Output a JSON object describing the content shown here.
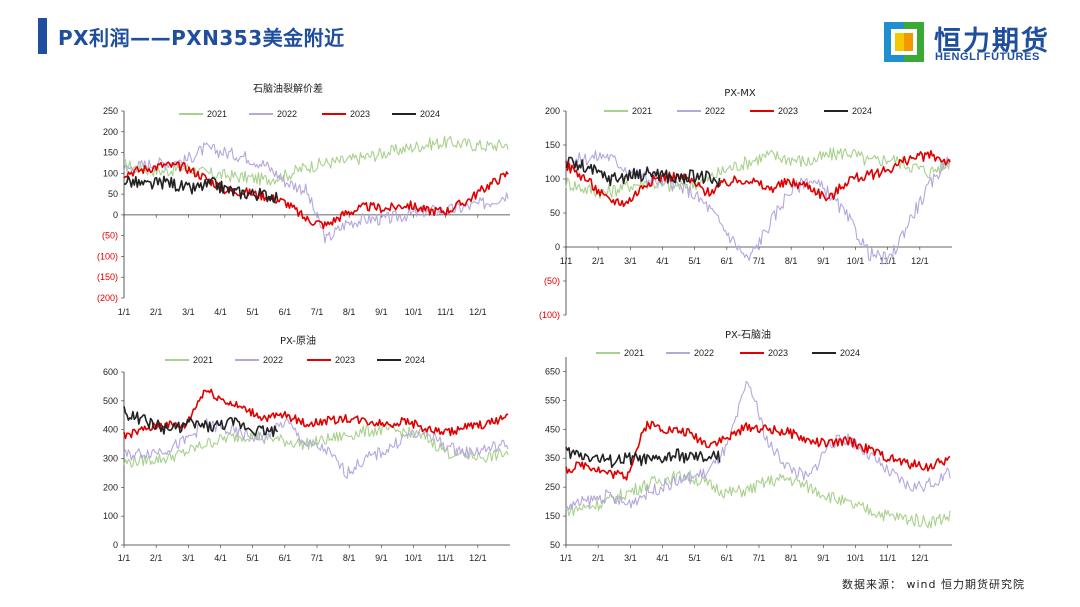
{
  "header": {
    "title": "PX利润——PXN353美金附近"
  },
  "logo": {
    "name_cn": "恒力期货",
    "name_en": "HENGLI FUTURES",
    "colors": {
      "green": "#3aa935",
      "orange": "#f39800",
      "yellow": "#f5c800",
      "blue": "#1f4e9c"
    }
  },
  "footer": {
    "source": "数据来源： wind 恒力期货研究院"
  },
  "colors": {
    "2021": "#a9d18e",
    "2022": "#b4a7de",
    "2023": "#e00000",
    "2024": "#222222"
  },
  "chart_data": [
    {
      "type": "line",
      "title": "石脑油裂解价差",
      "legend": [
        "2021",
        "2022",
        "2023",
        "2024"
      ],
      "ylim": [
        -200,
        250
      ],
      "yticks": [
        250,
        200,
        150,
        100,
        50,
        0,
        -50,
        -100,
        -150,
        -200
      ],
      "ytick_labels": [
        "250",
        "200",
        "150",
        "100",
        "50",
        "0",
        "(50)",
        "(100)",
        "(150)",
        "(200)"
      ],
      "zero_axis": true,
      "x_ticks": [
        "1/1",
        "2/1",
        "3/1",
        "4/1",
        "5/1",
        "6/1",
        "7/1",
        "8/1",
        "9/1",
        "10/1",
        "11/1",
        "12/1"
      ],
      "series": [
        {
          "name": "2021",
          "values": [
            120,
            110,
            105,
            115,
            100,
            95,
            90,
            85,
            95,
            115,
            125,
            130,
            140,
            150,
            160,
            170,
            175,
            170,
            165,
            170
          ]
        },
        {
          "name": "2022",
          "values": [
            110,
            120,
            125,
            130,
            160,
            150,
            140,
            120,
            80,
            60,
            -60,
            -20,
            -10,
            -10,
            0,
            10,
            10,
            20,
            30,
            50
          ]
        },
        {
          "name": "2023",
          "values": [
            100,
            110,
            120,
            115,
            90,
            60,
            55,
            45,
            30,
            -10,
            -25,
            5,
            20,
            15,
            25,
            10,
            10,
            35,
            70,
            100
          ]
        },
        {
          "name": "2024",
          "values": [
            85,
            70,
            80,
            60,
            75,
            55,
            50,
            45
          ]
        }
      ]
    },
    {
      "type": "line",
      "title": "PX-MX",
      "legend": [
        "2021",
        "2022",
        "2023",
        "2024"
      ],
      "ylim": [
        -100,
        200
      ],
      "yticks": [
        200,
        150,
        100,
        50,
        0,
        -50,
        -100
      ],
      "ytick_labels": [
        "200",
        "150",
        "100",
        "50",
        "0",
        "(50)",
        "(100)"
      ],
      "zero_axis": true,
      "x_ticks": [
        "1/1",
        "2/1",
        "3/1",
        "4/1",
        "5/1",
        "6/1",
        "7/1",
        "8/1",
        "9/1",
        "10/1",
        "11/1",
        "12/1"
      ],
      "series": [
        {
          "name": "2021",
          "values": [
            95,
            85,
            80,
            90,
            95,
            90,
            90,
            100,
            115,
            125,
            135,
            130,
            125,
            135,
            140,
            125,
            130,
            120,
            110,
            125
          ]
        },
        {
          "name": "2022",
          "values": [
            125,
            130,
            135,
            115,
            100,
            95,
            85,
            60,
            20,
            -20,
            30,
            80,
            100,
            80,
            40,
            -10,
            -20,
            40,
            90,
            135
          ]
        },
        {
          "name": "2023",
          "values": [
            120,
            100,
            70,
            65,
            95,
            105,
            100,
            80,
            95,
            100,
            85,
            95,
            90,
            70,
            100,
            105,
            115,
            130,
            135,
            125
          ]
        },
        {
          "name": "2024",
          "values": [
            125,
            115,
            100,
            105,
            110,
            100,
            105,
            95
          ]
        }
      ]
    },
    {
      "type": "line",
      "title": "PX-原油",
      "legend": [
        "2021",
        "2022",
        "2023",
        "2024"
      ],
      "ylim": [
        0,
        600
      ],
      "yticks": [
        600,
        500,
        400,
        300,
        200,
        100,
        0
      ],
      "ytick_labels": [
        "600",
        "500",
        "400",
        "300",
        "200",
        "100",
        "0"
      ],
      "zero_axis": false,
      "x_ticks": [
        "1/1",
        "2/1",
        "3/1",
        "4/1",
        "5/1",
        "6/1",
        "7/1",
        "8/1",
        "9/1",
        "10/1",
        "11/1",
        "12/1"
      ],
      "series": [
        {
          "name": "2021",
          "values": [
            285,
            295,
            300,
            320,
            350,
            370,
            380,
            375,
            360,
            350,
            365,
            380,
            395,
            400,
            390,
            370,
            320,
            310,
            305,
            320
          ]
        },
        {
          "name": "2022",
          "values": [
            310,
            320,
            330,
            360,
            420,
            400,
            380,
            370,
            430,
            350,
            330,
            250,
            300,
            330,
            380,
            390,
            340,
            320,
            335,
            350
          ]
        },
        {
          "name": "2023",
          "values": [
            380,
            400,
            420,
            410,
            540,
            500,
            470,
            440,
            450,
            420,
            430,
            440,
            430,
            420,
            430,
            400,
            390,
            410,
            420,
            450
          ]
        },
        {
          "name": "2024",
          "values": [
            460,
            430,
            400,
            420,
            410,
            425,
            400,
            395
          ]
        }
      ]
    },
    {
      "type": "line",
      "title": "PX-石脑油",
      "legend": [
        "2021",
        "2022",
        "2023",
        "2024"
      ],
      "ylim": [
        50,
        700
      ],
      "yticks": [
        650,
        550,
        450,
        350,
        250,
        150,
        50
      ],
      "ytick_labels": [
        "650",
        "550",
        "450",
        "350",
        "250",
        "150",
        "50"
      ],
      "zero_axis": false,
      "x_ticks": [
        "1/1",
        "2/1",
        "3/1",
        "4/1",
        "5/1",
        "6/1",
        "7/1",
        "8/1",
        "9/1",
        "10/1",
        "11/1",
        "12/1"
      ],
      "series": [
        {
          "name": "2021",
          "values": [
            170,
            180,
            200,
            230,
            260,
            280,
            290,
            260,
            230,
            240,
            270,
            280,
            250,
            220,
            190,
            170,
            150,
            140,
            130,
            150
          ]
        },
        {
          "name": "2022",
          "values": [
            180,
            200,
            220,
            190,
            230,
            260,
            280,
            300,
            390,
            620,
            400,
            320,
            280,
            400,
            420,
            360,
            300,
            250,
            260,
            300
          ]
        },
        {
          "name": "2023",
          "values": [
            310,
            330,
            300,
            290,
            470,
            450,
            440,
            400,
            420,
            460,
            450,
            440,
            410,
            400,
            410,
            380,
            350,
            330,
            320,
            350
          ]
        },
        {
          "name": "2024",
          "values": [
            370,
            360,
            340,
            350,
            340,
            360,
            350,
            355
          ]
        }
      ]
    }
  ]
}
